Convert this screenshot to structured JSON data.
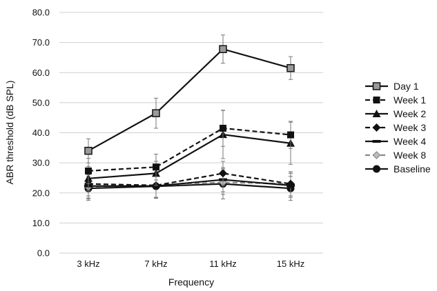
{
  "chart_data": {
    "type": "line",
    "title": "",
    "xlabel": "Frequency",
    "ylabel": "ABR threshold (dB SPL)",
    "categories": [
      "3 kHz",
      "7 kHz",
      "11 kHz",
      "15 kHz"
    ],
    "ylim": [
      0,
      80
    ],
    "yticks": [
      "0.0",
      "10.0",
      "20.0",
      "30.0",
      "40.0",
      "50.0",
      "60.0",
      "70.0",
      "80.0"
    ],
    "grid": "horizontal",
    "legend_position": "right",
    "series": [
      {
        "name": "Day 1",
        "values": [
          34.0,
          46.5,
          67.8,
          61.5
        ],
        "errors": [
          4.0,
          5.0,
          4.7,
          3.8
        ],
        "marker": "square-open",
        "dash": "solid",
        "color": "#111111"
      },
      {
        "name": "Week 1",
        "values": [
          27.3,
          28.6,
          41.5,
          39.3
        ],
        "errors": [
          4.2,
          4.3,
          6.0,
          4.5
        ],
        "marker": "square",
        "dash": "dashed",
        "color": "#111111"
      },
      {
        "name": "Week 2",
        "values": [
          24.8,
          26.5,
          39.4,
          36.5
        ],
        "errors": [
          4.0,
          4.0,
          8.0,
          7.0
        ],
        "marker": "triangle",
        "dash": "solid",
        "color": "#111111"
      },
      {
        "name": "Week 3",
        "values": [
          23.0,
          22.5,
          26.5,
          23.0
        ],
        "errors": [
          4.0,
          4.0,
          4.0,
          4.0
        ],
        "marker": "diamond",
        "dash": "dashed",
        "color": "#111111"
      },
      {
        "name": "Week 4",
        "values": [
          22.3,
          22.3,
          24.4,
          22.5
        ],
        "errors": [
          4.0,
          4.0,
          4.0,
          4.0
        ],
        "marker": "dash",
        "dash": "solid",
        "color": "#111111"
      },
      {
        "name": "Week 8",
        "values": [
          22.0,
          22.5,
          23.5,
          23.0
        ],
        "errors": [
          4.0,
          4.0,
          4.0,
          4.0
        ],
        "marker": "plus",
        "dash": "dashed",
        "color": "#888888"
      },
      {
        "name": "Baseline",
        "values": [
          21.5,
          22.2,
          23.0,
          21.5
        ],
        "errors": [
          4.0,
          4.0,
          5.0,
          4.0
        ],
        "marker": "circle",
        "dash": "solid",
        "color": "#111111"
      }
    ]
  }
}
